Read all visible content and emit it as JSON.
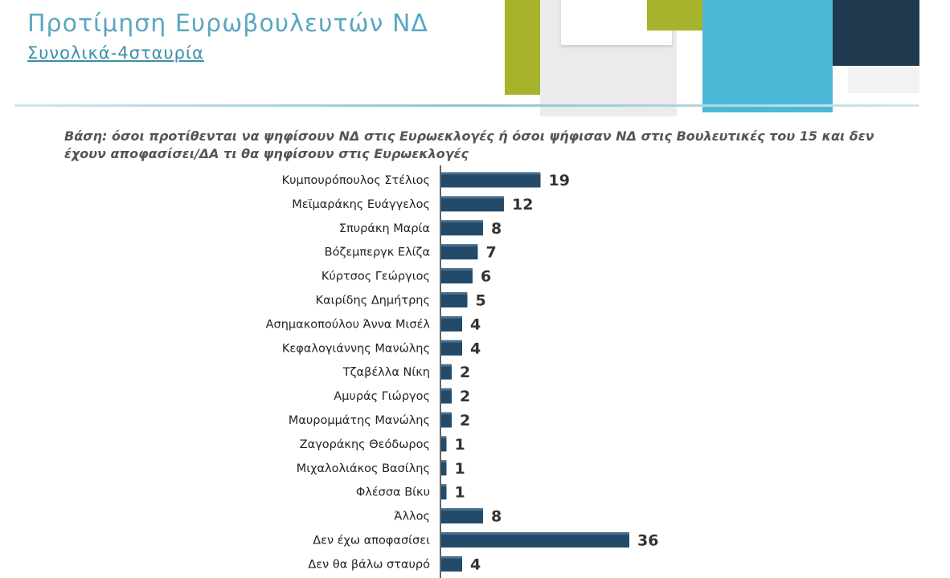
{
  "header": {
    "title": "Προτίμηση Ευρωβουλευτών ΝΔ",
    "subtitle": "Συνολικά-4σταυρία"
  },
  "basis_text": "Βάση: όσοι προτίθενται να ψηφίσουν ΝΔ στις Ευρωεκλογές ή όσοι ψήφισαν ΝΔ στις Βουλευτικές του 15 και δεν έχουν αποφασίσει/ΔΑ τι θα ψηφίσουν στις Ευρωεκλογές",
  "colors": {
    "title": "#5aa7c0",
    "bar": "#234a68",
    "deco_olive": "#a6b32b",
    "deco_cyan": "#4bb8d8",
    "deco_navy": "#1f3a4e"
  },
  "chart_data": {
    "type": "bar",
    "orientation": "horizontal",
    "categories": [
      "Κυμπουρόπουλος Στέλιος",
      "Μεϊμαράκης Ευάγγελος",
      "Σπυράκη Μαρία",
      "Βόζεμπεργκ Ελίζα",
      "Κύρτσος Γεώργιος",
      "Καιρίδης Δημήτρης",
      "Ασημακοπούλου Άννα Μισέλ",
      "Κεφαλογιάννης Μανώλης",
      "Τζαβέλλα Νίκη",
      "Αμυράς Γιώργος",
      "Μαυρομμάτης Μανώλης",
      "Ζαγοράκης Θεόδωρος",
      "Μιχαλολιάκος Βασίλης",
      "Φλέσσα Βίκυ",
      "Άλλος",
      "Δεν έχω αποφασίσει",
      "Δεν θα βάλω σταυρό"
    ],
    "values": [
      19,
      12,
      8,
      7,
      6,
      5,
      4,
      4,
      2,
      2,
      2,
      1,
      1,
      1,
      8,
      36,
      4
    ],
    "xlim": [
      0,
      36
    ],
    "grid": false,
    "legend": "none"
  }
}
